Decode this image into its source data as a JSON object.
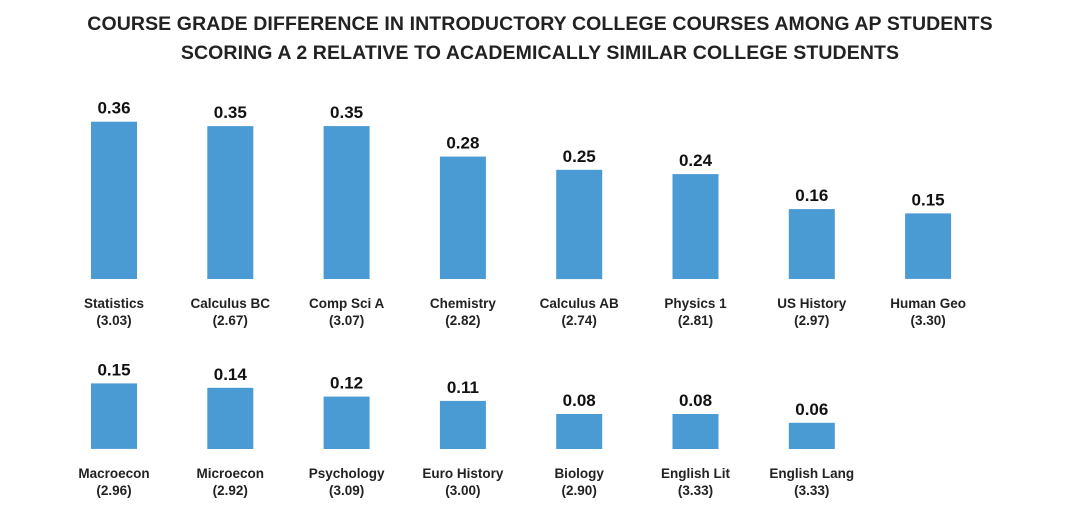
{
  "chart_data": {
    "type": "bar",
    "title_lines": [
      "COURSE GRADE DIFFERENCE IN INTRODUCTORY COLLEGE COURSES AMONG AP STUDENTS",
      "SCORING A 2 RELATIVE TO ACADEMICALLY SIMILAR COLLEGE STUDENTS"
    ],
    "bar_color": "#4a9bd4",
    "ylim": [
      0,
      0.4
    ],
    "panels": [
      {
        "categories": [
          "Statistics",
          "Calculus BC",
          "Comp Sci A",
          "Chemistry",
          "Calculus AB",
          "Physics 1",
          "US History",
          "Human Geo"
        ],
        "sublabels": [
          "(3.03)",
          "(2.67)",
          "(3.07)",
          "(2.82)",
          "(2.74)",
          "(2.81)",
          "(2.97)",
          "(3.30)"
        ],
        "values": [
          0.36,
          0.35,
          0.35,
          0.28,
          0.25,
          0.24,
          0.16,
          0.15
        ],
        "value_labels": [
          "0.36",
          "0.35",
          "0.35",
          "0.28",
          "0.25",
          "0.24",
          "0.16",
          "0.15"
        ]
      },
      {
        "categories": [
          "Macroecon",
          "Microecon",
          "Psychology",
          "Euro History",
          "Biology",
          "English Lit",
          "English Lang"
        ],
        "sublabels": [
          "(2.96)",
          "(2.92)",
          "(3.09)",
          "(3.00)",
          "(2.90)",
          "(3.33)",
          "(3.33)"
        ],
        "values": [
          0.15,
          0.14,
          0.12,
          0.11,
          0.08,
          0.08,
          0.06
        ],
        "value_labels": [
          "0.15",
          "0.14",
          "0.12",
          "0.11",
          "0.08",
          "0.08",
          "0.06"
        ]
      }
    ]
  }
}
